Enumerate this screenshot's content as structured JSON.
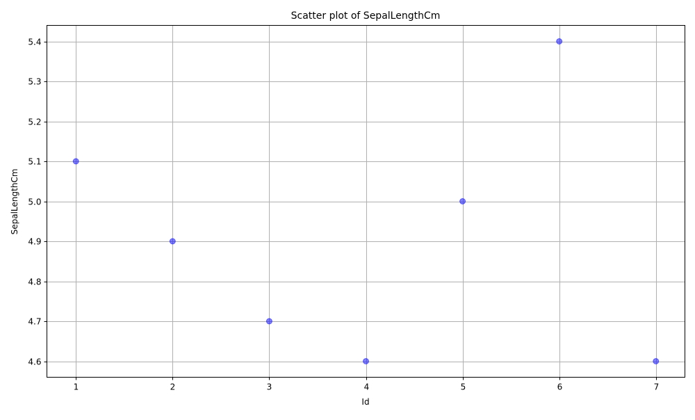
{
  "chart_data": {
    "type": "scatter",
    "title": "Scatter plot of SepalLengthCm",
    "xlabel": "Id",
    "ylabel": "SepalLengthCm",
    "grid": true,
    "xlim": [
      0.7,
      7.3
    ],
    "ylim": [
      4.56,
      5.44
    ],
    "x_ticks": [
      1,
      2,
      3,
      4,
      5,
      6,
      7
    ],
    "x_tick_labels": [
      "1",
      "2",
      "3",
      "4",
      "5",
      "6",
      "7"
    ],
    "y_ticks": [
      4.6,
      4.7,
      4.8,
      4.9,
      5.0,
      5.1,
      5.2,
      5.3,
      5.4
    ],
    "y_tick_labels": [
      "4.6",
      "4.7",
      "4.8",
      "4.9",
      "5.0",
      "5.1",
      "5.2",
      "5.3",
      "5.4"
    ],
    "series": [
      {
        "name": "SepalLengthCm",
        "color": "#0000ff",
        "alpha": 0.5,
        "x": [
          1,
          2,
          3,
          4,
          5,
          6,
          7
        ],
        "y": [
          5.1,
          4.9,
          4.7,
          4.6,
          5.0,
          5.4,
          4.6
        ]
      }
    ]
  }
}
